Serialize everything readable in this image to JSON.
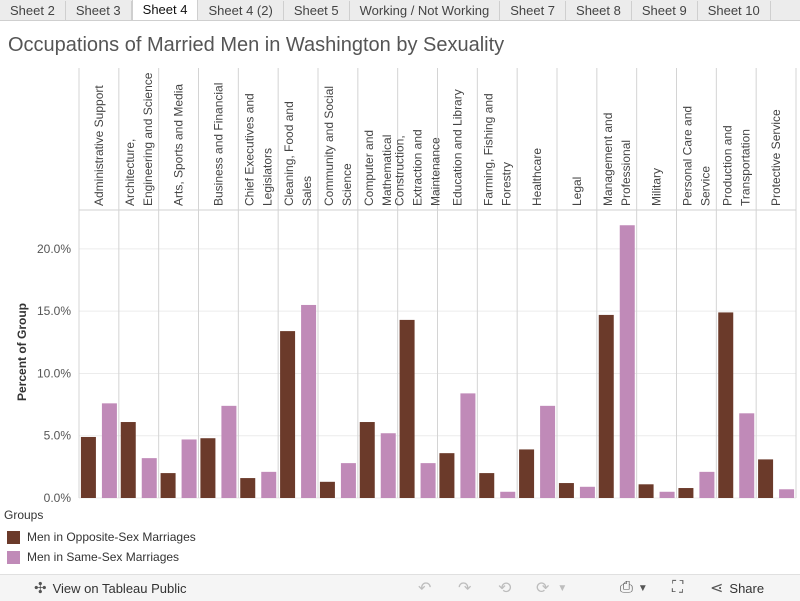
{
  "tabs": [
    {
      "label": "Sheet 2",
      "active": false
    },
    {
      "label": "Sheet 3",
      "active": false
    },
    {
      "label": "Sheet 4",
      "active": true
    },
    {
      "label": "Sheet 4 (2)",
      "active": false
    },
    {
      "label": "Sheet 5",
      "active": false
    },
    {
      "label": "Working / Not Working",
      "active": false
    },
    {
      "label": "Sheet 7",
      "active": false
    },
    {
      "label": "Sheet 8",
      "active": false
    },
    {
      "label": "Sheet 9",
      "active": false
    },
    {
      "label": "Sheet 10",
      "active": false
    }
  ],
  "legend": {
    "title": "Groups",
    "items": [
      {
        "label": "Men in Opposite-Sex Marriages",
        "color": "#6b3a2a"
      },
      {
        "label": "Men in Same-Sex Marriages",
        "color": "#c08ab8"
      }
    ]
  },
  "toolbar": {
    "view_label": "View on Tableau Public",
    "share_label": "Share",
    "icons": [
      "tableau-logo-icon",
      "undo-icon",
      "redo-icon",
      "revert-icon",
      "refresh-icon",
      "download-icon",
      "fullscreen-icon",
      "share-icon"
    ]
  },
  "chart_data": {
    "type": "bar",
    "title": "Occupations of Married Men in Washington by Sexuality",
    "ylabel": "Percent of Group",
    "xlabel": "",
    "ylim": [
      0,
      0.22
    ],
    "yticks": [
      "0.0%",
      "5.0%",
      "10.0%",
      "15.0%",
      "20.0%"
    ],
    "grid": true,
    "categories": [
      "Administrative Support",
      "Architecture, Engineering and Science",
      "Arts, Sports and Media",
      "Business and Financial",
      "Chief Executives and Legislators",
      "Cleaning, Food and Sales",
      "Community and Social Science",
      "Computer and Mathematical",
      "Construction, Extraction and Maintenance",
      "Education and Library",
      "Farming, Fishing and Forestry",
      "Healthcare",
      "Legal",
      "Management and Professional",
      "Military",
      "Personal Care and Service",
      "Production and Transportation",
      "Protective Service"
    ],
    "series": [
      {
        "name": "Men in Opposite-Sex Marriages",
        "color": "#6b3a2a",
        "values": [
          0.049,
          0.061,
          0.02,
          0.048,
          0.016,
          0.134,
          0.013,
          0.061,
          0.143,
          0.036,
          0.02,
          0.039,
          0.012,
          0.147,
          0.011,
          0.008,
          0.149,
          0.031
        ]
      },
      {
        "name": "Men in Same-Sex Marriages",
        "color": "#c08ab8",
        "values": [
          0.076,
          0.032,
          0.047,
          0.074,
          0.021,
          0.155,
          0.028,
          0.052,
          0.028,
          0.084,
          0.005,
          0.074,
          0.009,
          0.219,
          0.005,
          0.021,
          0.068,
          0.007
        ]
      }
    ]
  }
}
